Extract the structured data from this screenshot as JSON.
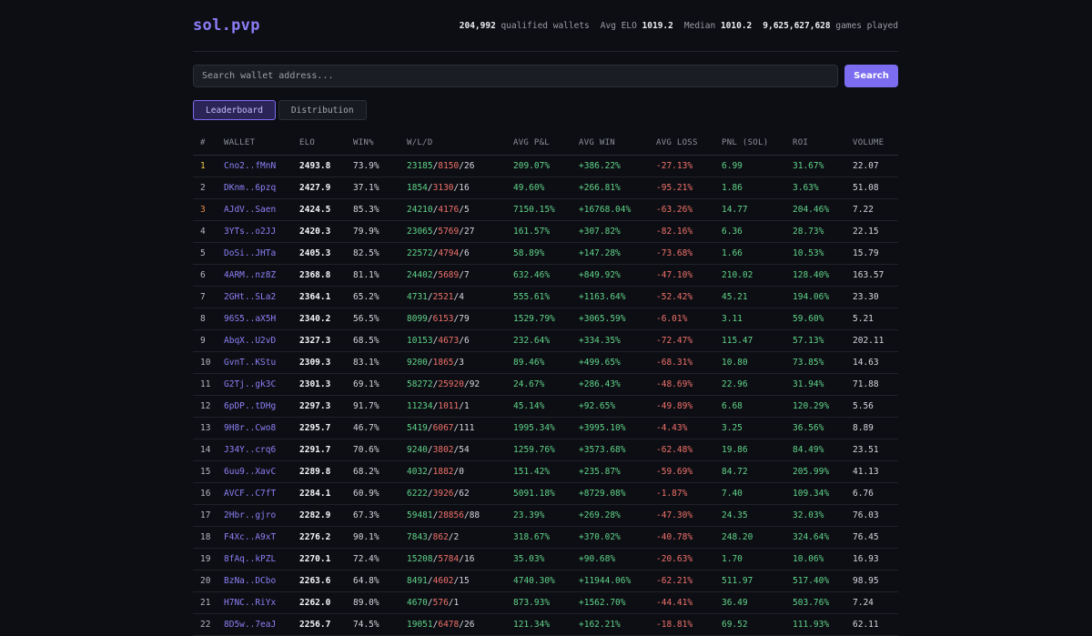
{
  "header": {
    "logo": "sol.pvp",
    "stats": {
      "wallets_value": "204,992",
      "wallets_label": "qualified wallets",
      "avg_label": "Avg ELO",
      "avg_value": "1019.2",
      "median_label": "Median",
      "median_value": "1010.2",
      "games_value": "9,625,627,628",
      "games_label": "games played"
    }
  },
  "search": {
    "placeholder": "Search wallet address...",
    "value": "",
    "button_label": "Search"
  },
  "tabs": [
    {
      "label": "Leaderboard",
      "active": true
    },
    {
      "label": "Distribution",
      "active": false
    }
  ],
  "table": {
    "columns": [
      "#",
      "WALLET",
      "ELO",
      "WIN%",
      "W/L/D",
      "AVG P&L",
      "AVG WIN",
      "AVG LOSS",
      "PNL (SOL)",
      "ROI",
      "VOLUME"
    ],
    "rows": [
      {
        "rank": "1",
        "wallet": "Cno2..fMnN",
        "elo": "2493.8",
        "win": "73.9%",
        "w": "23185",
        "l": "8150",
        "d": "26",
        "avg_pnl": "209.07%",
        "avg_win": "+386.22%",
        "avg_loss": "-27.13%",
        "pnl": "6.99",
        "roi": "31.67%",
        "volume": "22.07"
      },
      {
        "rank": "2",
        "wallet": "DKnm..6pzq",
        "elo": "2427.9",
        "win": "37.1%",
        "w": "1854",
        "l": "3130",
        "d": "16",
        "avg_pnl": "49.60%",
        "avg_win": "+266.81%",
        "avg_loss": "-95.21%",
        "pnl": "1.86",
        "roi": "3.63%",
        "volume": "51.08"
      },
      {
        "rank": "3",
        "wallet": "AJdV..Saen",
        "elo": "2424.5",
        "win": "85.3%",
        "w": "24210",
        "l": "4176",
        "d": "5",
        "avg_pnl": "7150.15%",
        "avg_win": "+16768.04%",
        "avg_loss": "-63.26%",
        "pnl": "14.77",
        "roi": "204.46%",
        "volume": "7.22"
      },
      {
        "rank": "4",
        "wallet": "3YTs..o2JJ",
        "elo": "2420.3",
        "win": "79.9%",
        "w": "23065",
        "l": "5769",
        "d": "27",
        "avg_pnl": "161.57%",
        "avg_win": "+307.82%",
        "avg_loss": "-82.16%",
        "pnl": "6.36",
        "roi": "28.73%",
        "volume": "22.15"
      },
      {
        "rank": "5",
        "wallet": "DoSi..JHTa",
        "elo": "2405.3",
        "win": "82.5%",
        "w": "22572",
        "l": "4794",
        "d": "6",
        "avg_pnl": "58.89%",
        "avg_win": "+147.28%",
        "avg_loss": "-73.68%",
        "pnl": "1.66",
        "roi": "10.53%",
        "volume": "15.79"
      },
      {
        "rank": "6",
        "wallet": "4ARM..nz8Z",
        "elo": "2368.8",
        "win": "81.1%",
        "w": "24402",
        "l": "5689",
        "d": "7",
        "avg_pnl": "632.46%",
        "avg_win": "+849.92%",
        "avg_loss": "-47.10%",
        "pnl": "210.02",
        "roi": "128.40%",
        "volume": "163.57"
      },
      {
        "rank": "7",
        "wallet": "2GHt..SLa2",
        "elo": "2364.1",
        "win": "65.2%",
        "w": "4731",
        "l": "2521",
        "d": "4",
        "avg_pnl": "555.61%",
        "avg_win": "+1163.64%",
        "avg_loss": "-52.42%",
        "pnl": "45.21",
        "roi": "194.06%",
        "volume": "23.30"
      },
      {
        "rank": "8",
        "wallet": "96S5..aX5H",
        "elo": "2340.2",
        "win": "56.5%",
        "w": "8099",
        "l": "6153",
        "d": "79",
        "avg_pnl": "1529.79%",
        "avg_win": "+3065.59%",
        "avg_loss": "-6.01%",
        "pnl": "3.11",
        "roi": "59.60%",
        "volume": "5.21"
      },
      {
        "rank": "9",
        "wallet": "AbqX..U2vD",
        "elo": "2327.3",
        "win": "68.5%",
        "w": "10153",
        "l": "4673",
        "d": "6",
        "avg_pnl": "232.64%",
        "avg_win": "+334.35%",
        "avg_loss": "-72.47%",
        "pnl": "115.47",
        "roi": "57.13%",
        "volume": "202.11"
      },
      {
        "rank": "10",
        "wallet": "GvnT..KStu",
        "elo": "2309.3",
        "win": "83.1%",
        "w": "9200",
        "l": "1865",
        "d": "3",
        "avg_pnl": "89.46%",
        "avg_win": "+499.65%",
        "avg_loss": "-68.31%",
        "pnl": "10.80",
        "roi": "73.85%",
        "volume": "14.63"
      },
      {
        "rank": "11",
        "wallet": "G2Tj..gk3C",
        "elo": "2301.3",
        "win": "69.1%",
        "w": "58272",
        "l": "25920",
        "d": "92",
        "avg_pnl": "24.67%",
        "avg_win": "+286.43%",
        "avg_loss": "-48.69%",
        "pnl": "22.96",
        "roi": "31.94%",
        "volume": "71.88"
      },
      {
        "rank": "12",
        "wallet": "6pDP..tDHg",
        "elo": "2297.3",
        "win": "91.7%",
        "w": "11234",
        "l": "1011",
        "d": "1",
        "avg_pnl": "45.14%",
        "avg_win": "+92.65%",
        "avg_loss": "-49.89%",
        "pnl": "6.68",
        "roi": "120.29%",
        "volume": "5.56"
      },
      {
        "rank": "13",
        "wallet": "9H8r..Cwo8",
        "elo": "2295.7",
        "win": "46.7%",
        "w": "5419",
        "l": "6067",
        "d": "111",
        "avg_pnl": "1995.34%",
        "avg_win": "+3995.10%",
        "avg_loss": "-4.43%",
        "pnl": "3.25",
        "roi": "36.56%",
        "volume": "8.89"
      },
      {
        "rank": "14",
        "wallet": "J34Y..crq6",
        "elo": "2291.7",
        "win": "70.6%",
        "w": "9240",
        "l": "3802",
        "d": "54",
        "avg_pnl": "1259.76%",
        "avg_win": "+3573.68%",
        "avg_loss": "-62.48%",
        "pnl": "19.86",
        "roi": "84.49%",
        "volume": "23.51"
      },
      {
        "rank": "15",
        "wallet": "6uu9..XavC",
        "elo": "2289.8",
        "win": "68.2%",
        "w": "4032",
        "l": "1882",
        "d": "0",
        "avg_pnl": "151.42%",
        "avg_win": "+235.87%",
        "avg_loss": "-59.69%",
        "pnl": "84.72",
        "roi": "205.99%",
        "volume": "41.13"
      },
      {
        "rank": "16",
        "wallet": "AVCF..C7fT",
        "elo": "2284.1",
        "win": "60.9%",
        "w": "6222",
        "l": "3926",
        "d": "62",
        "avg_pnl": "5091.18%",
        "avg_win": "+8729.08%",
        "avg_loss": "-1.87%",
        "pnl": "7.40",
        "roi": "109.34%",
        "volume": "6.76"
      },
      {
        "rank": "17",
        "wallet": "2Hbr..gjro",
        "elo": "2282.9",
        "win": "67.3%",
        "w": "59481",
        "l": "28856",
        "d": "88",
        "avg_pnl": "23.39%",
        "avg_win": "+269.28%",
        "avg_loss": "-47.30%",
        "pnl": "24.35",
        "roi": "32.03%",
        "volume": "76.03"
      },
      {
        "rank": "18",
        "wallet": "F4Xc..A9xT",
        "elo": "2276.2",
        "win": "90.1%",
        "w": "7843",
        "l": "862",
        "d": "2",
        "avg_pnl": "318.67%",
        "avg_win": "+370.02%",
        "avg_loss": "-40.78%",
        "pnl": "248.20",
        "roi": "324.64%",
        "volume": "76.45"
      },
      {
        "rank": "19",
        "wallet": "8fAq..kPZL",
        "elo": "2270.1",
        "win": "72.4%",
        "w": "15208",
        "l": "5784",
        "d": "16",
        "avg_pnl": "35.03%",
        "avg_win": "+90.68%",
        "avg_loss": "-20.63%",
        "pnl": "1.70",
        "roi": "10.06%",
        "volume": "16.93"
      },
      {
        "rank": "20",
        "wallet": "BzNa..DCbo",
        "elo": "2263.6",
        "win": "64.8%",
        "w": "8491",
        "l": "4602",
        "d": "15",
        "avg_pnl": "4740.30%",
        "avg_win": "+11944.06%",
        "avg_loss": "-62.21%",
        "pnl": "511.97",
        "roi": "517.40%",
        "volume": "98.95"
      },
      {
        "rank": "21",
        "wallet": "H7NC..RiYx",
        "elo": "2262.0",
        "win": "89.0%",
        "w": "4670",
        "l": "576",
        "d": "1",
        "avg_pnl": "873.93%",
        "avg_win": "+1562.70%",
        "avg_loss": "-44.41%",
        "pnl": "36.49",
        "roi": "503.76%",
        "volume": "7.24"
      },
      {
        "rank": "22",
        "wallet": "8D5w..7eaJ",
        "elo": "2256.7",
        "win": "74.5%",
        "w": "19051",
        "l": "6478",
        "d": "26",
        "avg_pnl": "121.34%",
        "avg_win": "+162.21%",
        "avg_loss": "-18.81%",
        "pnl": "69.52",
        "roi": "111.93%",
        "volume": "62.11"
      }
    ]
  },
  "colors": {
    "accent": "#7c6cf0",
    "positive": "#5fd48a",
    "negative": "#f0716b",
    "gold": "#f3c74b",
    "bronze": "#e58b4a"
  }
}
